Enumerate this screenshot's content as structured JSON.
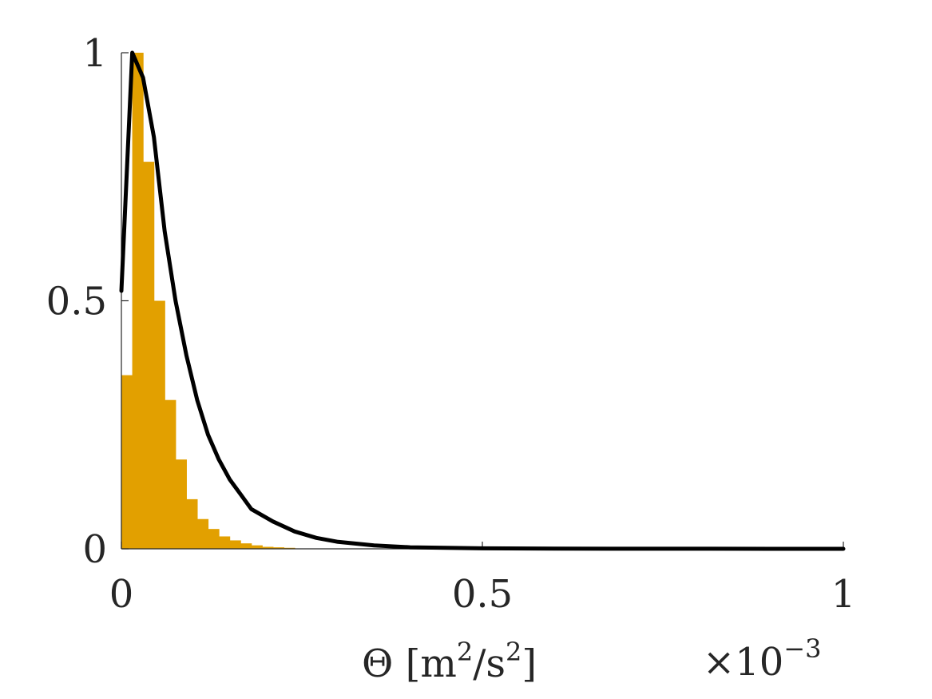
{
  "chart_data": {
    "type": "bar",
    "title": "",
    "xlabel": "Θ [m²/s²]",
    "xlabel_parts": {
      "base": "Θ [m",
      "exp1": "2",
      "mid": "/s",
      "exp2": "2",
      "end": "]"
    },
    "x_multiplier": {
      "base": "×10",
      "exp": "−3"
    },
    "ylabel": "",
    "xlim": [
      0,
      1
    ],
    "ylim": [
      0,
      1
    ],
    "grid": false,
    "x_ticks": [
      {
        "value": 0,
        "label": "0"
      },
      {
        "value": 0.5,
        "label": "0.5"
      },
      {
        "value": 1,
        "label": "1"
      }
    ],
    "y_ticks": [
      {
        "value": 0,
        "label": "0"
      },
      {
        "value": 0.5,
        "label": "0.5"
      },
      {
        "value": 1,
        "label": "1"
      }
    ],
    "histogram": {
      "color": "#E2A000",
      "bin_width": 0.015,
      "values": [
        0.35,
        1.0,
        0.78,
        0.5,
        0.3,
        0.18,
        0.1,
        0.06,
        0.04,
        0.025,
        0.017,
        0.011,
        0.007,
        0.004,
        0.003,
        0.002
      ]
    },
    "curve": {
      "color": "#000000",
      "x": [
        0,
        0.015,
        0.03,
        0.045,
        0.06,
        0.075,
        0.09,
        0.105,
        0.12,
        0.135,
        0.15,
        0.165,
        0.18,
        0.21,
        0.24,
        0.27,
        0.3,
        0.35,
        0.4,
        0.5,
        0.6,
        0.7,
        0.8,
        0.9,
        1.0
      ],
      "y": [
        0.52,
        1.0,
        0.95,
        0.83,
        0.64,
        0.5,
        0.39,
        0.3,
        0.23,
        0.18,
        0.14,
        0.11,
        0.08,
        0.055,
        0.035,
        0.022,
        0.014,
        0.007,
        0.003,
        0.001,
        0.0005,
        0.0002,
        0.0001,
        0.0,
        0.0
      ]
    }
  }
}
